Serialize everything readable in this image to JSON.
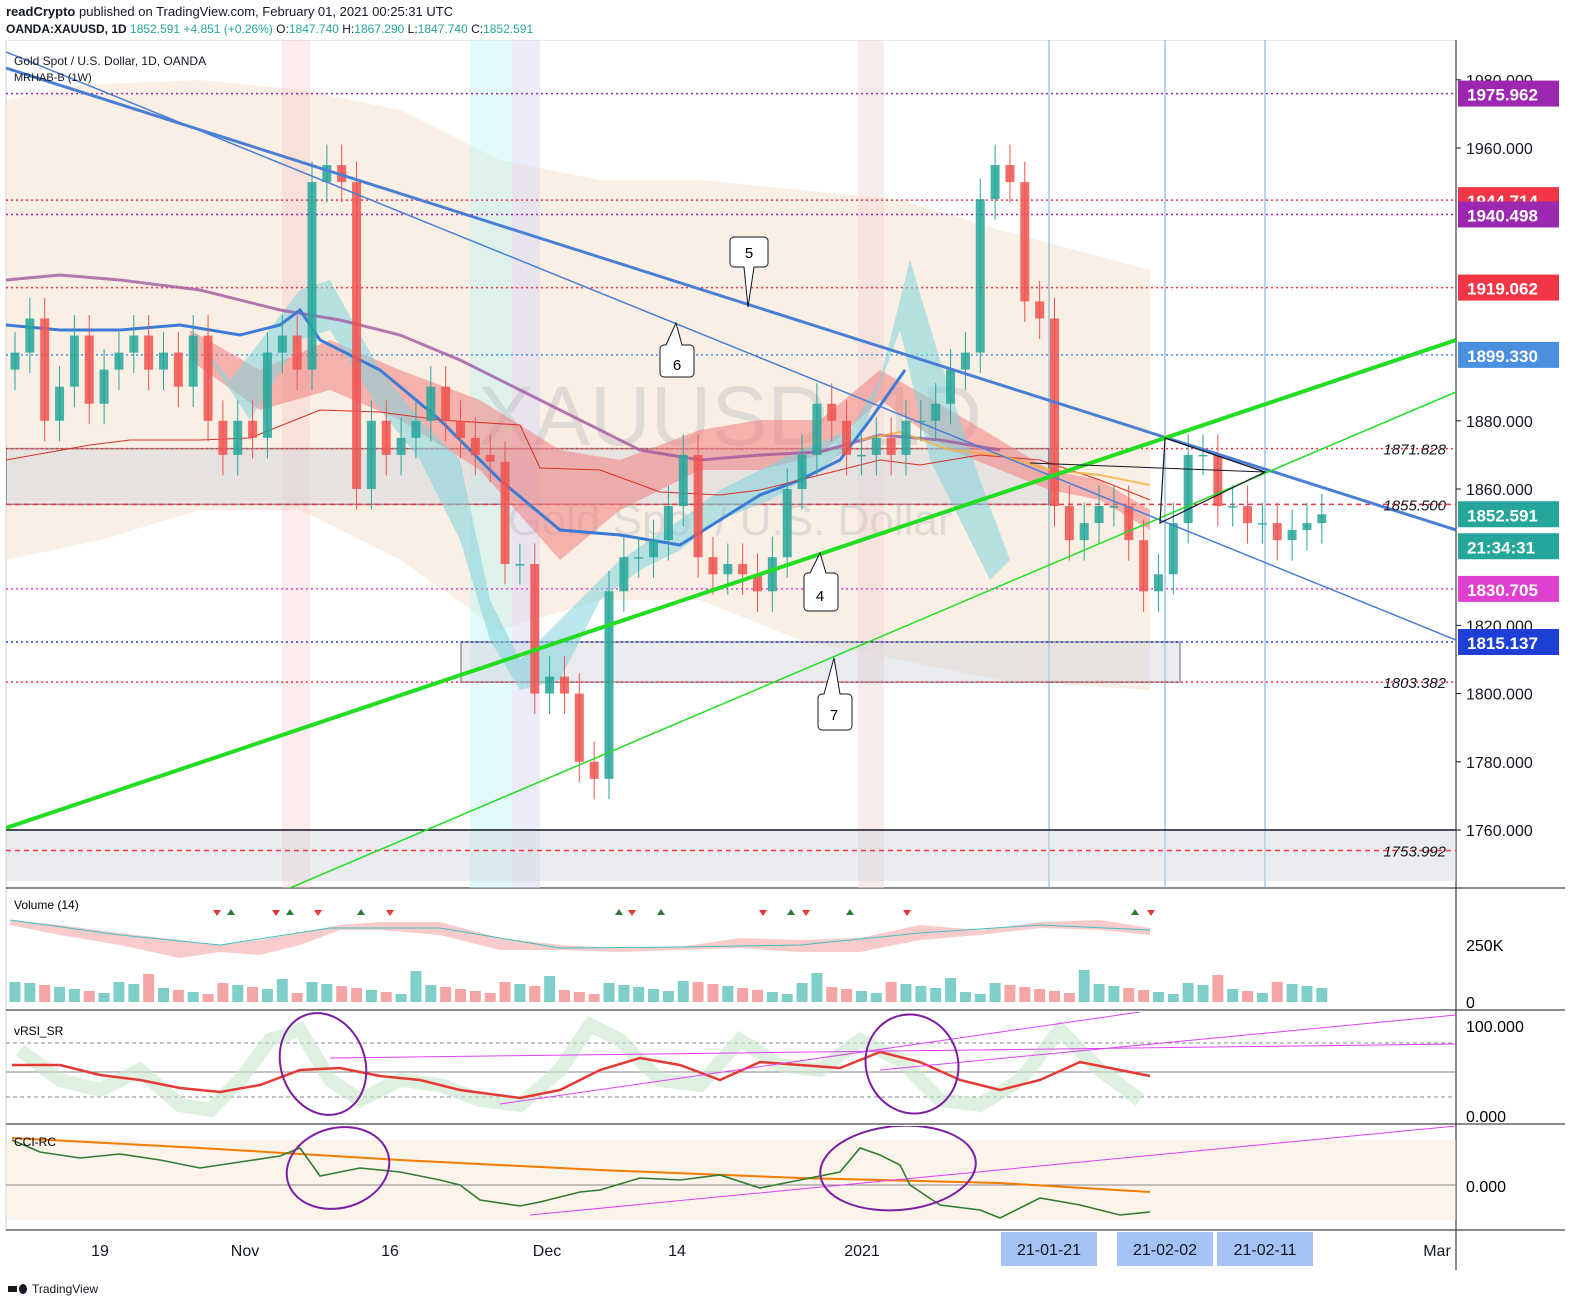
{
  "header": {
    "author": "readCrypto",
    "published_text": "published on TradingView.com, February 01, 2021 00:25:31 UTC",
    "symbol": "OANDA:XAUUSD, 1D",
    "last": "1852.591",
    "change": "+4.851 (+0.26%)",
    "open": "1847.740",
    "high": "1867.290",
    "low": "1847.740",
    "close": "1852.591"
  },
  "legend": {
    "title": "Gold Spot / U.S. Dollar, 1D, OANDA",
    "indicator": "MRHAB-B (1W)"
  },
  "watermark": {
    "symbol": "XAUUSD, 1D",
    "name": "Gold Spot / U.S. Dollar"
  },
  "price_axis": {
    "ticks": [
      "1980.000",
      "1960.000",
      "1880.000",
      "1860.000",
      "1820.000",
      "1800.000",
      "1780.000",
      "1760.000"
    ],
    "tick_values": [
      1980,
      1960,
      1880,
      1860,
      1820,
      1800,
      1780,
      1760
    ]
  },
  "price_labels": [
    {
      "text": "1975.962",
      "value": 1975.962,
      "color": "#9c27b0"
    },
    {
      "text": "1944.714",
      "value": 1944.714,
      "color": "#f23645"
    },
    {
      "text": "1940.498",
      "value": 1940.498,
      "color": "#9c27b0"
    },
    {
      "text": "1919.062",
      "value": 1919.062,
      "color": "#f23645"
    },
    {
      "text": "1899.330",
      "value": 1899.33,
      "color": "#4a8fe0"
    },
    {
      "text": "1852.591",
      "value": 1852.591,
      "color": "#26a69a"
    },
    {
      "text": "21:34:31",
      "value": 1845.0,
      "color": "#26a69a"
    },
    {
      "text": "1830.705",
      "value": 1830.705,
      "color": "#e040d0"
    },
    {
      "text": "1815.137",
      "value": 1815.137,
      "color": "#1e3fd6"
    }
  ],
  "level_labels": [
    {
      "text": "1871.828",
      "value": 1871.828
    },
    {
      "text": "1855.500",
      "value": 1855.5
    },
    {
      "text": "1803.382",
      "value": 1803.382
    },
    {
      "text": "1753.992",
      "value": 1753.992
    }
  ],
  "callouts": [
    {
      "text": "5"
    },
    {
      "text": "6"
    },
    {
      "text": "4"
    },
    {
      "text": "7"
    }
  ],
  "volume": {
    "title": "Volume (14)",
    "ticks": [
      "250K",
      "0"
    ]
  },
  "rsi": {
    "title": "vRSI_SR",
    "ticks": [
      "100.000",
      "0.000"
    ]
  },
  "cci": {
    "title": "CCI-RC",
    "ticks": [
      "0.000"
    ]
  },
  "time_axis": {
    "labels": [
      "19",
      "Nov",
      "16",
      "Dec",
      "14",
      "2021",
      "Mar"
    ],
    "highlighted": [
      "21-01-21",
      "21-02-02",
      "21-02-11"
    ]
  },
  "footer": {
    "brand": "TradingView"
  },
  "chart_data": {
    "type": "candlestick",
    "title": "Gold Spot / U.S. Dollar, 1D, OANDA",
    "symbol": "OANDA:XAUUSD",
    "interval": "1D",
    "ylim": [
      1745,
      1990
    ],
    "candles_close": [
      1900,
      1910,
      1880,
      1890,
      1905,
      1885,
      1895,
      1900,
      1905,
      1895,
      1900,
      1890,
      1905,
      1880,
      1870,
      1880,
      1875,
      1900,
      1905,
      1895,
      1950,
      1955,
      1950,
      1860,
      1880,
      1870,
      1875,
      1880,
      1890,
      1880,
      1875,
      1870,
      1868,
      1838,
      1838,
      1800,
      1805,
      1800,
      1780,
      1775,
      1830,
      1840,
      1840,
      1845,
      1855,
      1870,
      1840,
      1835,
      1838,
      1835,
      1830,
      1840,
      1860,
      1870,
      1885,
      1880,
      1870,
      1870,
      1875,
      1870,
      1880,
      1880,
      1885,
      1895,
      1900,
      1945,
      1955,
      1950,
      1915,
      1910,
      1855,
      1845,
      1850,
      1855,
      1855,
      1845,
      1830,
      1835,
      1850,
      1870,
      1870,
      1855,
      1855,
      1850,
      1850,
      1845,
      1848,
      1850,
      1852.591
    ],
    "horizontal_levels": [
      1975.962,
      1944.714,
      1940.498,
      1919.062,
      1899.33,
      1871.828,
      1855.5,
      1830.705,
      1815.137,
      1803.382,
      1753.992
    ],
    "zones": [
      [
        1855.5,
        1871.828
      ],
      [
        1803.382,
        1815.137
      ],
      [
        1745,
        1760
      ]
    ],
    "grid": true
  }
}
